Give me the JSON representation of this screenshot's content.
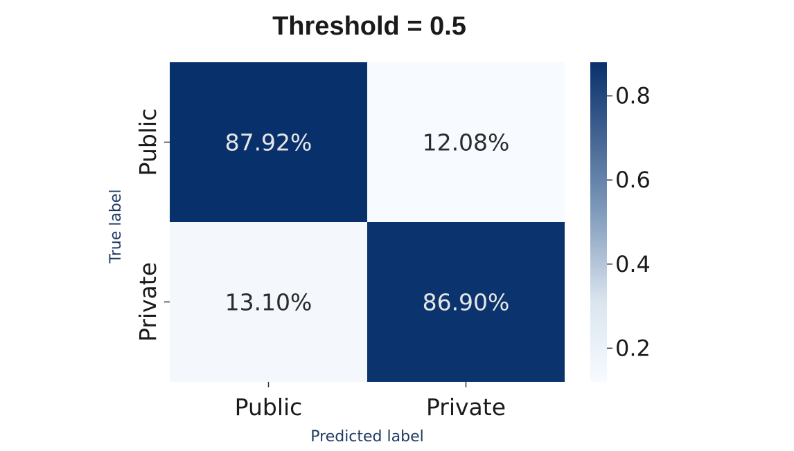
{
  "chart_data": {
    "type": "heatmap",
    "title": "Threshold = 0.5",
    "xlabel": "Predicted label",
    "ylabel": "True label",
    "x_categories": [
      "Public",
      "Private"
    ],
    "y_categories": [
      "Public",
      "Private"
    ],
    "values": [
      [
        0.8792,
        0.1208
      ],
      [
        0.131,
        0.869
      ]
    ],
    "cell_labels": [
      [
        "87.92%",
        "12.08%"
      ],
      [
        "13.10%",
        "86.90%"
      ]
    ],
    "colormap": "Blues",
    "colorbar": {
      "range": [
        0.12,
        0.88
      ],
      "ticks": [
        0.2,
        0.4,
        0.6,
        0.8
      ],
      "tick_labels": [
        "0.2",
        "0.4",
        "0.6",
        "0.8"
      ],
      "colors": {
        "low": "#f7fbff",
        "high": "#08306b"
      }
    },
    "text_colors": {
      "dark_cell": "#e6e6e6",
      "light_cell": "#2b2b2b"
    },
    "grid": false
  }
}
